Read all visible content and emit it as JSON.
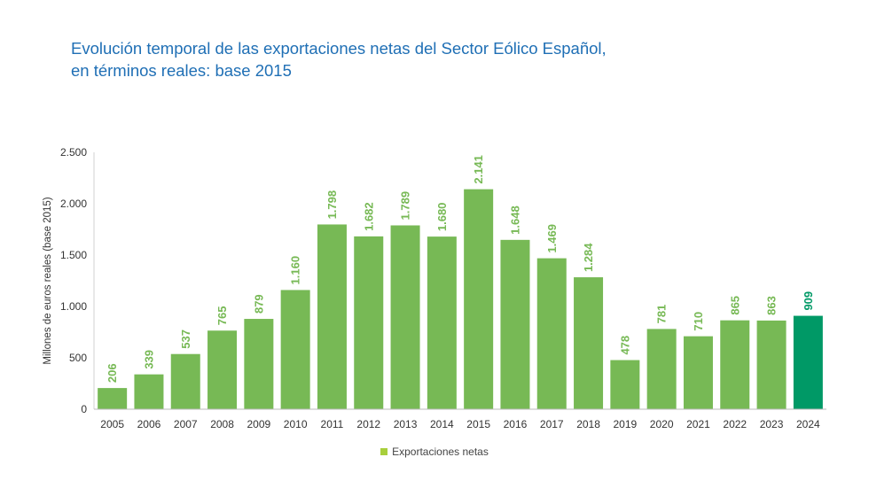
{
  "title_line1": "Evolución temporal de las exportaciones netas del Sector Eólico Español,",
  "title_line2": "en términos reales: base 2015",
  "colors": {
    "bar": "#77b955",
    "highlight": "#009966",
    "legend": "#a8cf3c",
    "title": "#1f6fb5"
  },
  "chart_data": {
    "type": "bar",
    "title": "Evolución temporal de las exportaciones netas del Sector Eólico Español, en términos reales: base 2015",
    "xlabel": "",
    "ylabel": "Millones de euros reales (base 2015)",
    "ylim": [
      0,
      2500
    ],
    "yticks": [
      0,
      500,
      1000,
      1500,
      2000,
      2500
    ],
    "ytick_labels": [
      "0",
      "500",
      "1.000",
      "1.500",
      "2.000",
      "2.500"
    ],
    "categories": [
      "2005",
      "2006",
      "2007",
      "2008",
      "2009",
      "2010",
      "2011",
      "2012",
      "2013",
      "2014",
      "2015",
      "2016",
      "2017",
      "2018",
      "2019",
      "2020",
      "2021",
      "2022",
      "2023",
      "2024"
    ],
    "values": [
      206,
      339,
      537,
      765,
      879,
      1160,
      1798,
      1682,
      1789,
      1680,
      2141,
      1648,
      1469,
      1284,
      478,
      781,
      710,
      865,
      863,
      909
    ],
    "value_labels": [
      "206",
      "339",
      "537",
      "765",
      "879",
      "1.160",
      "1.798",
      "1.682",
      "1.789",
      "1.680",
      "2.141",
      "1.648",
      "1.469",
      "1.284",
      "478",
      "781",
      "710",
      "865",
      "863",
      "909"
    ],
    "highlight_category": "2024",
    "series": [
      {
        "name": "Exportaciones netas"
      }
    ],
    "legend_position": "bottom",
    "grid": false
  }
}
